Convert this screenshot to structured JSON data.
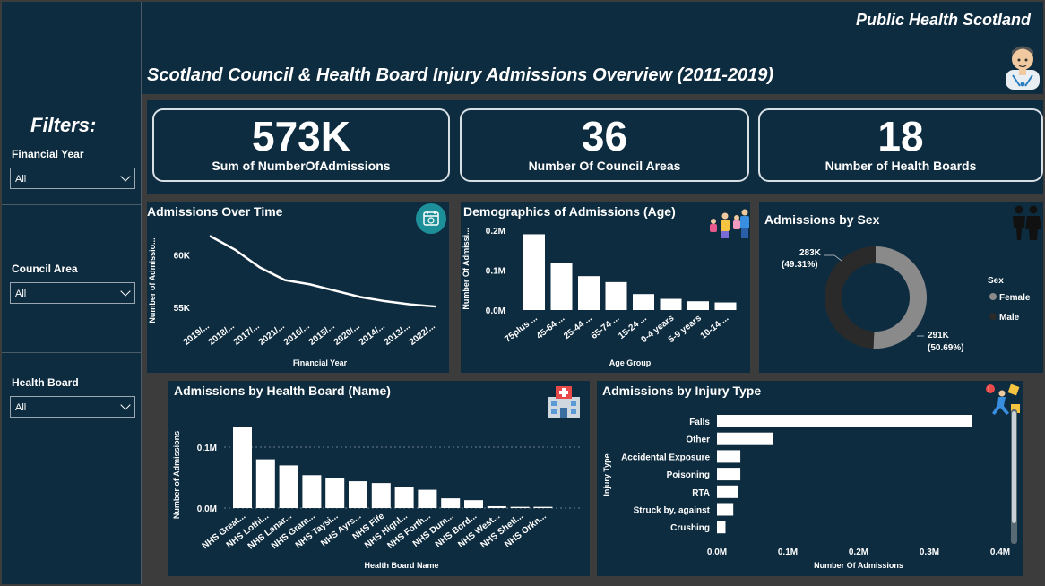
{
  "header": {
    "org": "Public Health Scotland",
    "title": "Scotland Council & Health Board Injury Admissions Overview (2011-2019)"
  },
  "filters": {
    "heading": "Filters:",
    "financial_year": {
      "label": "Financial Year",
      "value": "All"
    },
    "council_area": {
      "label": "Council Area",
      "value": "All"
    },
    "health_board": {
      "label": "Health Board",
      "value": "All"
    }
  },
  "kpis": [
    {
      "value": "573K",
      "label": "Sum of NumberOfAdmissions"
    },
    {
      "value": "36",
      "label": "Number Of Council Areas"
    },
    {
      "value": "18",
      "label": "Number of Health Boards"
    }
  ],
  "icons": {
    "doctor": "doctor-icon",
    "time": "calendar-icon",
    "family": "family-icon",
    "couple": "couple-icon",
    "hospital": "hospital-icon",
    "injury": "injury-icon"
  },
  "colors": {
    "navy": "#0e2c3f",
    "background": "#3c3c3c",
    "teal": "#1d8f99",
    "male": "#2a2a2a",
    "female": "#8a8a8a"
  },
  "charts": {
    "time": {
      "title": "Admissions Over Time",
      "xlabel": "Financial Year",
      "ylabel": "Number of Admissio..."
    },
    "age": {
      "title": "Demographics of Admissions (Age)",
      "xlabel": "Age Group",
      "ylabel": "Number Of Admissi..."
    },
    "sex": {
      "title": "Admissions by Sex",
      "legend_title": "Sex",
      "male_label_value": "283K",
      "male_label_pct": "(49.31%)",
      "female_label_value": "291K",
      "female_label_pct": "(50.69%)"
    },
    "hb": {
      "title": "Admissions by Health Board (Name)",
      "xlabel": "Health Board Name",
      "ylabel": "Number of Admissions"
    },
    "injury": {
      "title": "Admissions by Injury Type",
      "xlabel": "Number Of Admissions",
      "ylabel": "Injury Type"
    }
  },
  "chart_data": [
    {
      "type": "line",
      "title": "Admissions Over Time",
      "xlabel": "Financial Year",
      "ylabel": "Number of Admissio...",
      "categories": [
        "2019/...",
        "2018/...",
        "2017/...",
        "2021/...",
        "2016/...",
        "2015/...",
        "2020/...",
        "2014/...",
        "2013/...",
        "2022/..."
      ],
      "values": [
        61800,
        60500,
        58800,
        57600,
        57200,
        56600,
        56000,
        55600,
        55300,
        55100
      ],
      "yticks": [
        "60K",
        "55K"
      ],
      "ylim": [
        54000,
        62500
      ]
    },
    {
      "type": "bar",
      "title": "Demographics of Admissions (Age)",
      "xlabel": "Age Group",
      "ylabel": "Number Of Admissi...",
      "categories": [
        "75plus ...",
        "45-64 ...",
        "25-44 ...",
        "65-74 ...",
        "15-24 ...",
        "0-4 years",
        "5-9 years",
        "10-14 ..."
      ],
      "values": [
        190000,
        118000,
        85000,
        70000,
        40000,
        28000,
        22000,
        19000
      ],
      "yticks": [
        "0.2M",
        "0.1M",
        "0.0M"
      ],
      "ylim": [
        0,
        200000
      ]
    },
    {
      "type": "pie",
      "title": "Admissions by Sex",
      "legend": [
        "Female",
        "Male"
      ],
      "categories": [
        "Female",
        "Male"
      ],
      "values": [
        291000,
        283000
      ],
      "labels": [
        "291K (50.69%)",
        "283K (49.31%)"
      ],
      "legend_position": "right"
    },
    {
      "type": "bar",
      "title": "Admissions by Health Board (Name)",
      "xlabel": "Health Board Name",
      "ylabel": "Number of Admissions",
      "categories": [
        "NHS Great...",
        "NHS Lothi...",
        "NHS Lanar...",
        "NHS Gram...",
        "NHS Taysi...",
        "NHS Ayrs...",
        "NHS Fife",
        "NHS Highl...",
        "NHS Forth...",
        "NHS Dum...",
        "NHS Bord...",
        "NHS West...",
        "NHS Shetl...",
        "NHS Orkn..."
      ],
      "values": [
        133000,
        80000,
        70000,
        54000,
        50000,
        44000,
        41000,
        34000,
        30000,
        16000,
        13000,
        3000,
        2000,
        2000
      ],
      "yticks": [
        "0.1M",
        "0.0M"
      ],
      "ylim": [
        0,
        150000
      ]
    },
    {
      "type": "bar",
      "title": "Admissions by Injury Type",
      "xlabel": "Number Of Admissions",
      "ylabel": "Injury Type",
      "orientation": "horizontal",
      "categories": [
        "Falls",
        "Other",
        "Accidental Exposure",
        "Poisoning",
        "RTA",
        "Struck by, against",
        "Crushing"
      ],
      "values": [
        360000,
        79000,
        33000,
        33000,
        30000,
        23000,
        12000
      ],
      "xticks": [
        "0.0M",
        "0.1M",
        "0.2M",
        "0.3M",
        "0.4M"
      ],
      "xlim": [
        0,
        400000
      ]
    }
  ]
}
